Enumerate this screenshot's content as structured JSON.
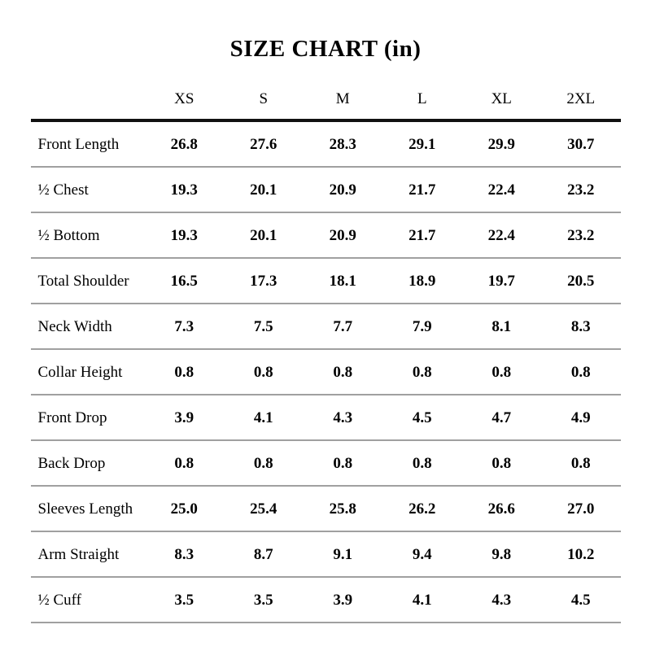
{
  "title": "SIZE CHART (in)",
  "colors": {
    "background": "#ffffff",
    "text": "#000000",
    "header_rule": "#111111",
    "row_rule": "#a0a0a0"
  },
  "chart_data": {
    "type": "table",
    "title": "SIZE CHART (in)",
    "unit": "in",
    "columns": [
      "XS",
      "S",
      "M",
      "L",
      "XL",
      "2XL"
    ],
    "rows": [
      {
        "label": "Front Length",
        "values": [
          "26.8",
          "27.6",
          "28.3",
          "29.1",
          "29.9",
          "30.7"
        ]
      },
      {
        "label": "½ Chest",
        "values": [
          "19.3",
          "20.1",
          "20.9",
          "21.7",
          "22.4",
          "23.2"
        ]
      },
      {
        "label": "½ Bottom",
        "values": [
          "19.3",
          "20.1",
          "20.9",
          "21.7",
          "22.4",
          "23.2"
        ]
      },
      {
        "label": "Total Shoulder",
        "values": [
          "16.5",
          "17.3",
          "18.1",
          "18.9",
          "19.7",
          "20.5"
        ]
      },
      {
        "label": "Neck Width",
        "values": [
          "7.3",
          "7.5",
          "7.7",
          "7.9",
          "8.1",
          "8.3"
        ]
      },
      {
        "label": "Collar Height",
        "values": [
          "0.8",
          "0.8",
          "0.8",
          "0.8",
          "0.8",
          "0.8"
        ]
      },
      {
        "label": "Front Drop",
        "values": [
          "3.9",
          "4.1",
          "4.3",
          "4.5",
          "4.7",
          "4.9"
        ]
      },
      {
        "label": "Back Drop",
        "values": [
          "0.8",
          "0.8",
          "0.8",
          "0.8",
          "0.8",
          "0.8"
        ]
      },
      {
        "label": "Sleeves Length",
        "values": [
          "25.0",
          "25.4",
          "25.8",
          "26.2",
          "26.6",
          "27.0"
        ]
      },
      {
        "label": "Arm Straight",
        "values": [
          "8.3",
          "8.7",
          "9.1",
          "9.4",
          "9.8",
          "10.2"
        ]
      },
      {
        "label": "½ Cuff",
        "values": [
          "3.5",
          "3.5",
          "3.9",
          "4.1",
          "4.3",
          "4.5"
        ]
      }
    ]
  }
}
